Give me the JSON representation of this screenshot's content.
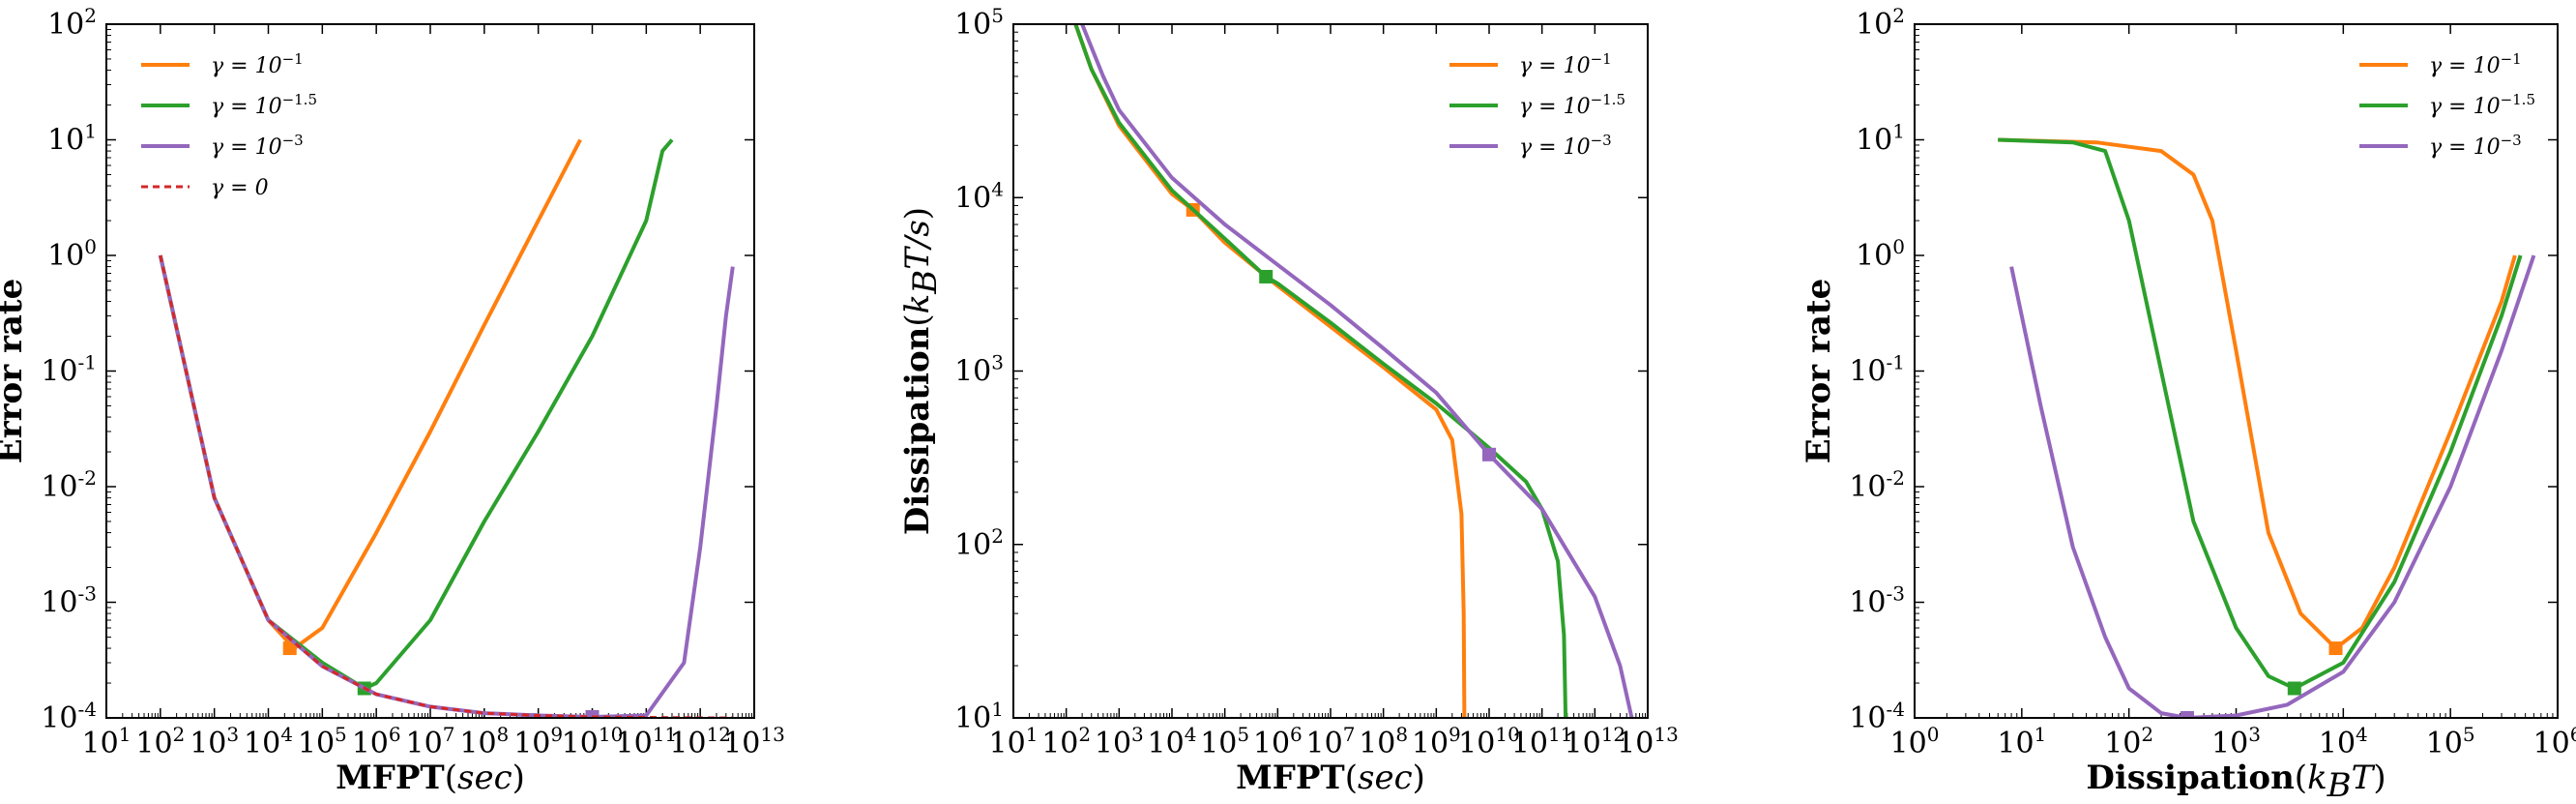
{
  "chart_data": [
    {
      "type": "line",
      "xlabel": "MFPT",
      "xlabel_unit": "sec",
      "ylabel": "Error rate",
      "xscale": "log",
      "yscale": "log",
      "xlim": [
        10.0,
        10000000000000.0
      ],
      "ylim": [
        0.0001,
        100.0
      ],
      "legend_position": "top-left",
      "series": [
        {
          "name": "γ = 10",
          "exp": "−1",
          "color": "#ff7f0e",
          "dash": "solid",
          "x": [
            100.0,
            1000.0,
            10000.0,
            30000.0,
            100000.0,
            1000000.0,
            10000000.0,
            100000000.0,
            1000000000.0,
            6000000000.0
          ],
          "y": [
            1,
            0.008,
            0.0007,
            0.0004,
            0.0006,
            0.004,
            0.03,
            0.25,
            2,
            10
          ],
          "marker": {
            "x": 25000.0,
            "y": 0.0004
          }
        },
        {
          "name": "γ = 10",
          "exp": "−1.5",
          "color": "#2ca02c",
          "dash": "solid",
          "x": [
            100.0,
            1000.0,
            10000.0,
            100000.0,
            600000.0,
            1000000.0,
            10000000.0,
            100000000.0,
            1000000000.0,
            10000000000.0,
            100000000000.0,
            200000000000.0,
            300000000000.0
          ],
          "y": [
            1,
            0.008,
            0.0007,
            0.0003,
            0.00018,
            0.0002,
            0.0007,
            0.005,
            0.03,
            0.2,
            2,
            8,
            10
          ],
          "marker": {
            "x": 600000.0,
            "y": 0.00018
          }
        },
        {
          "name": "γ = 10",
          "exp": "−3",
          "color": "#9467bd",
          "dash": "solid",
          "x": [
            100.0,
            1000.0,
            10000.0,
            100000.0,
            1000000.0,
            10000000.0,
            100000000.0,
            1000000000.0,
            10000000000.0,
            100000000000.0,
            500000000000.0,
            1000000000000.0,
            2000000000000.0,
            3000000000000.0,
            4000000000000.0
          ],
          "y": [
            1,
            0.008,
            0.0007,
            0.00028,
            0.00016,
            0.000125,
            0.00011,
            0.000105,
            0.000102,
            0.000105,
            0.0003,
            0.003,
            0.05,
            0.3,
            0.8
          ],
          "marker": {
            "x": 10000000000.0,
            "y": 0.000102
          }
        },
        {
          "name": "γ = 0",
          "exp": "",
          "color": "#d62728",
          "dash": "dashed",
          "x": [
            100.0,
            1000.0,
            10000.0,
            100000.0,
            1000000.0,
            10000000.0,
            100000000.0,
            1000000000.0,
            10000000000.0,
            100000000000.0,
            1000000000000.0,
            4000000000000.0
          ],
          "y": [
            1,
            0.008,
            0.0007,
            0.00028,
            0.00016,
            0.000125,
            0.00011,
            0.000105,
            0.000102,
            0.000101,
            0.0001,
            0.0001
          ]
        }
      ]
    },
    {
      "type": "line",
      "xlabel": "MFPT",
      "xlabel_unit": "sec",
      "ylabel": "Dissipation",
      "ylabel_unit": "k",
      "xscale": "log",
      "yscale": "log",
      "xlim": [
        10.0,
        10000000000000.0
      ],
      "ylim": [
        10.0,
        100000.0
      ],
      "legend_position": "top-right",
      "series": [
        {
          "name": "γ = 10",
          "exp": "−1",
          "color": "#ff7f0e",
          "dash": "solid",
          "x": [
            150.0,
            300.0,
            1000.0,
            10000.0,
            25000.0,
            100000.0,
            1000000.0,
            10000000.0,
            100000000.0,
            1000000000.0,
            2000000000.0,
            3000000000.0,
            3300000000.0,
            3400000000.0
          ],
          "y": [
            100000.0,
            55000.0,
            26000.0,
            10500.0,
            8500.0,
            5500.0,
            3100.0,
            1800.0,
            1050.0,
            600.0,
            400.0,
            150.0,
            40.0,
            10.0
          ],
          "marker": {
            "x": 25000.0,
            "y": 8500.0
          }
        },
        {
          "name": "γ = 10",
          "exp": "−1.5",
          "color": "#2ca02c",
          "dash": "solid",
          "x": [
            150.0,
            300.0,
            1000.0,
            10000.0,
            100000.0,
            600000.0,
            1000000.0,
            10000000.0,
            100000000.0,
            1000000000.0,
            10000000000.0,
            50000000000.0,
            100000000000.0,
            200000000000.0,
            260000000000.0,
            280000000000.0
          ],
          "y": [
            100000.0,
            55000.0,
            27000.0,
            11000.0,
            5800.0,
            3500.0,
            3200.0,
            1900.0,
            1100.0,
            650.0,
            360.0,
            230.0,
            160.0,
            80.0,
            30.0,
            10.0
          ],
          "marker": {
            "x": 600000.0,
            "y": 3500.0
          }
        },
        {
          "name": "γ = 10",
          "exp": "−3",
          "color": "#9467bd",
          "dash": "solid",
          "x": [
            200.0,
            500.0,
            1000.0,
            10000.0,
            100000.0,
            1000000.0,
            10000000.0,
            100000000.0,
            1000000000.0,
            10000000000.0,
            100000000000.0,
            1000000000000.0,
            3000000000000.0,
            5000000000000.0
          ],
          "y": [
            100000.0,
            50000.0,
            32000.0,
            13000.0,
            7000.0,
            4100.0,
            2400.0,
            1350.0,
            750.0,
            330.0,
            160.0,
            50.0,
            20.0,
            10.0
          ],
          "marker": {
            "x": 10000000000.0,
            "y": 330.0
          }
        }
      ]
    },
    {
      "type": "line",
      "xlabel": "Dissipation",
      "xlabel_unit": "k",
      "ylabel": "Error rate",
      "xscale": "log",
      "yscale": "log",
      "xlim": [
        1.0,
        1000000.0
      ],
      "ylim": [
        0.0001,
        100.0
      ],
      "legend_position": "top-right",
      "series": [
        {
          "name": "γ = 10",
          "exp": "−1",
          "color": "#ff7f0e",
          "dash": "solid",
          "x": [
            6,
            50,
            200,
            400,
            600,
            1000.0,
            2000.0,
            4000.0,
            8500.0,
            15000.0,
            30000.0,
            100000.0,
            300000.0,
            400000.0
          ],
          "y": [
            10,
            9.5,
            8,
            5,
            2,
            0.15,
            0.004,
            0.0008,
            0.0004,
            0.0006,
            0.002,
            0.03,
            0.4,
            1
          ],
          "marker": {
            "x": 8500.0,
            "y": 0.0004
          }
        },
        {
          "name": "γ = 10",
          "exp": "−1.5",
          "color": "#2ca02c",
          "dash": "solid",
          "x": [
            6,
            30,
            60,
            100,
            200,
            400,
            1000.0,
            2000.0,
            3500.0,
            10000.0,
            30000.0,
            100000.0,
            300000.0,
            450000.0
          ],
          "y": [
            10,
            9.5,
            8,
            2,
            0.1,
            0.005,
            0.0006,
            0.00023,
            0.00018,
            0.0003,
            0.0015,
            0.02,
            0.3,
            1
          ],
          "marker": {
            "x": 3500.0,
            "y": 0.00018
          }
        },
        {
          "name": "γ = 10",
          "exp": "−3",
          "color": "#9467bd",
          "dash": "solid",
          "x": [
            8,
            15,
            30,
            60,
            100,
            200,
            350,
            1000.0,
            3000.0,
            10000.0,
            30000.0,
            100000.0,
            300000.0,
            600000.0
          ],
          "y": [
            0.8,
            0.05,
            0.003,
            0.0005,
            0.00018,
            0.00011,
            0.0001,
            0.000105,
            0.00013,
            0.00025,
            0.001,
            0.01,
            0.15,
            1
          ],
          "marker": {
            "x": 350.0,
            "y": 0.0001
          }
        }
      ]
    }
  ]
}
